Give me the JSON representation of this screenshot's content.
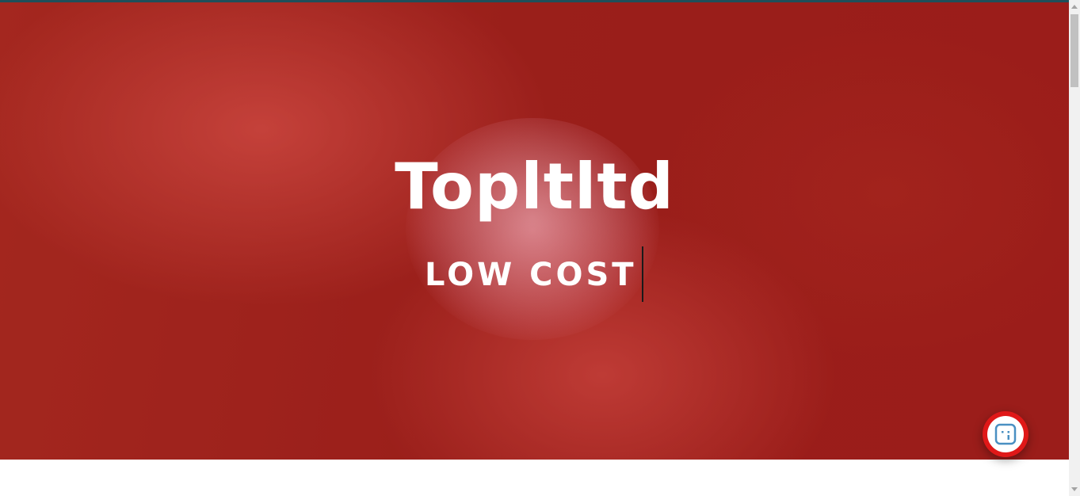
{
  "hero": {
    "title": "Topltltd",
    "subtitle": "LOW COST"
  },
  "widget": {
    "icon": "chat-bot-icon"
  },
  "colors": {
    "top_bar": "#1f4f5a",
    "hero_overlay": "#be1e1e",
    "widget_ring": "#e01818",
    "widget_icon": "#4a90c2"
  }
}
